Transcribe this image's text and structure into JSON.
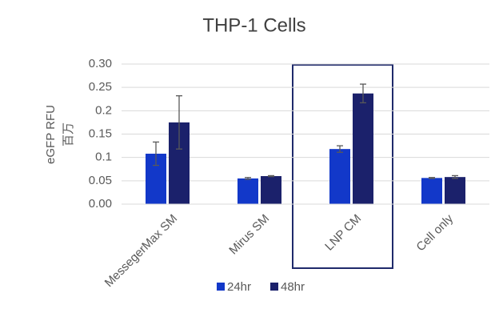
{
  "chart_data": {
    "type": "bar",
    "title": "THP-1 Cells",
    "y_label": "eGFP RFU",
    "y_unit_label": "百万",
    "categories": [
      "MessegerMax SM",
      "Mirus SM",
      "LNP CM",
      "Cell only"
    ],
    "series": [
      {
        "name": "24hr",
        "color": "#1238c9",
        "values": [
          0.108,
          0.055,
          0.118,
          0.056
        ],
        "errors": [
          0.025,
          0.002,
          0.007,
          0.001
        ]
      },
      {
        "name": "48hr",
        "color": "#1b216b",
        "values": [
          0.175,
          0.06,
          0.237,
          0.058
        ],
        "errors": [
          0.057,
          0.001,
          0.02,
          0.003
        ]
      }
    ],
    "ylim": [
      0,
      0.3
    ],
    "yticks": [
      {
        "value": 0,
        "label": "0.00"
      },
      0.05,
      0.1,
      0.15,
      0.2,
      0.25,
      {
        "value": 0.3,
        "label": "0.30"
      }
    ],
    "grid": true,
    "legend": "bottom"
  }
}
